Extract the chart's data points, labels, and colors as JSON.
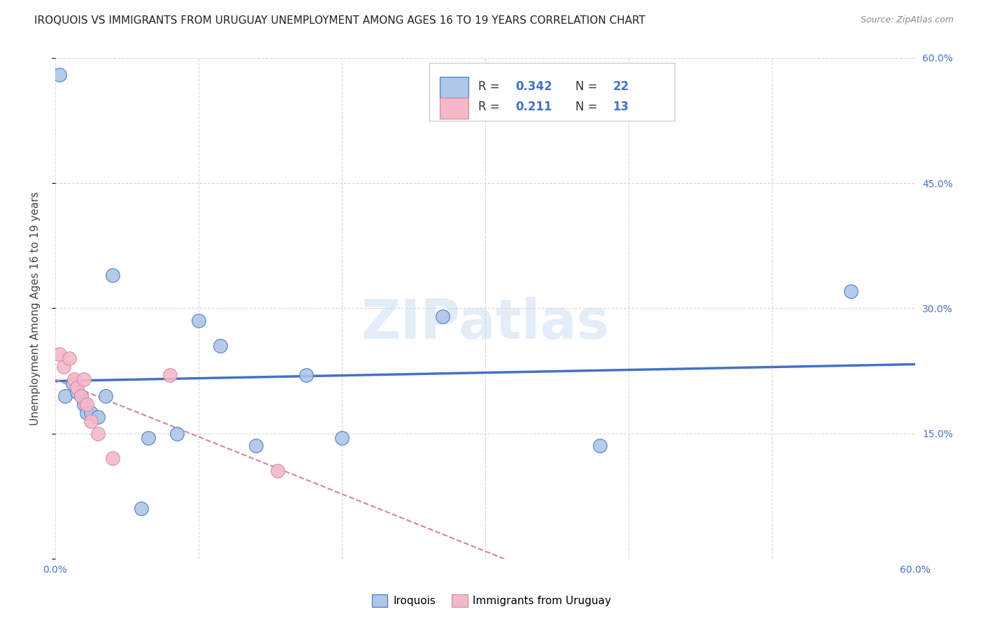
{
  "title": "IROQUOIS VS IMMIGRANTS FROM URUGUAY UNEMPLOYMENT AMONG AGES 16 TO 19 YEARS CORRELATION CHART",
  "source": "Source: ZipAtlas.com",
  "ylabel": "Unemployment Among Ages 16 to 19 years",
  "xlim": [
    0.0,
    0.6
  ],
  "ylim": [
    0.0,
    0.6
  ],
  "watermark": "ZIPatlas",
  "legend_iroquois_R": "0.342",
  "legend_iroquois_N": "22",
  "legend_uruguay_R": "0.211",
  "legend_uruguay_N": "13",
  "iroquois_color": "#aec6e8",
  "uruguay_color": "#f5b8c8",
  "iroquois_line_color": "#4472c4",
  "uruguay_line_color": "#d4869a",
  "iroquois_x": [
    0.003,
    0.007,
    0.012,
    0.015,
    0.018,
    0.02,
    0.022,
    0.025,
    0.03,
    0.035,
    0.04,
    0.06,
    0.065,
    0.085,
    0.1,
    0.115,
    0.14,
    0.175,
    0.2,
    0.27,
    0.38,
    0.555
  ],
  "iroquois_y": [
    0.58,
    0.195,
    0.21,
    0.2,
    0.195,
    0.185,
    0.175,
    0.175,
    0.17,
    0.195,
    0.34,
    0.06,
    0.145,
    0.15,
    0.285,
    0.255,
    0.135,
    0.22,
    0.145,
    0.29,
    0.135,
    0.32
  ],
  "uruguay_x": [
    0.003,
    0.006,
    0.01,
    0.013,
    0.015,
    0.018,
    0.02,
    0.022,
    0.025,
    0.03,
    0.04,
    0.08,
    0.155
  ],
  "uruguay_y": [
    0.245,
    0.23,
    0.24,
    0.215,
    0.205,
    0.195,
    0.215,
    0.185,
    0.165,
    0.15,
    0.12,
    0.22,
    0.105
  ],
  "grid_color": "#d8d8d8",
  "background_color": "#ffffff",
  "title_fontsize": 11,
  "axis_label_fontsize": 11,
  "tick_fontsize": 10
}
